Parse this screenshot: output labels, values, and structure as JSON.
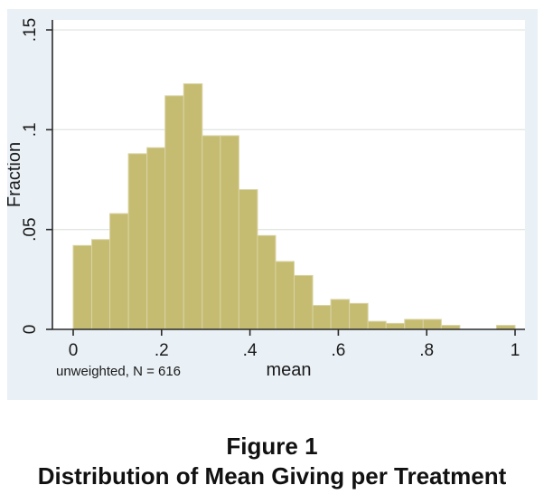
{
  "figure": {
    "background": "#e9f0f6",
    "plot_background": "#ffffff",
    "grid_color": "#e3e7e2",
    "axis_color": "#2a2a2a",
    "text_color": "#1a1a1a",
    "bar_fill": "#c5bc72",
    "bar_border": "#d9d3a4",
    "note": "unweighted, N = 616"
  },
  "caption": {
    "line1": "Figure 1",
    "line2": "Distribution of Mean Giving per Treatment"
  },
  "chart_data": {
    "type": "bar",
    "chart_kind": "histogram",
    "title": "",
    "xlabel": "mean",
    "ylabel": "Fraction",
    "note": "unweighted, N = 616",
    "n": 616,
    "grid": true,
    "legend": false,
    "xlim": [
      0,
      1
    ],
    "ylim": [
      0,
      0.155
    ],
    "x_ticks": [
      {
        "v": 0,
        "label": "0"
      },
      {
        "v": 0.2,
        "label": ".2"
      },
      {
        "v": 0.4,
        "label": ".4"
      },
      {
        "v": 0.6,
        "label": ".6"
      },
      {
        "v": 0.8,
        "label": ".8"
      },
      {
        "v": 1,
        "label": "1"
      }
    ],
    "y_ticks": [
      {
        "v": 0,
        "label": "0"
      },
      {
        "v": 0.05,
        "label": ".05"
      },
      {
        "v": 0.1,
        "label": ".1"
      },
      {
        "v": 0.15,
        "label": ".15"
      }
    ],
    "bin_start": 0,
    "bin_width": 0.04167,
    "bins": [
      {
        "x0": 0.0,
        "x1": 0.042,
        "fraction": 0.042
      },
      {
        "x0": 0.042,
        "x1": 0.083,
        "fraction": 0.045
      },
      {
        "x0": 0.083,
        "x1": 0.125,
        "fraction": 0.058
      },
      {
        "x0": 0.125,
        "x1": 0.167,
        "fraction": 0.088
      },
      {
        "x0": 0.167,
        "x1": 0.208,
        "fraction": 0.091
      },
      {
        "x0": 0.208,
        "x1": 0.25,
        "fraction": 0.117
      },
      {
        "x0": 0.25,
        "x1": 0.292,
        "fraction": 0.123
      },
      {
        "x0": 0.292,
        "x1": 0.333,
        "fraction": 0.097
      },
      {
        "x0": 0.333,
        "x1": 0.375,
        "fraction": 0.097
      },
      {
        "x0": 0.375,
        "x1": 0.417,
        "fraction": 0.07
      },
      {
        "x0": 0.417,
        "x1": 0.458,
        "fraction": 0.047
      },
      {
        "x0": 0.458,
        "x1": 0.5,
        "fraction": 0.034
      },
      {
        "x0": 0.5,
        "x1": 0.542,
        "fraction": 0.027
      },
      {
        "x0": 0.542,
        "x1": 0.583,
        "fraction": 0.012
      },
      {
        "x0": 0.583,
        "x1": 0.625,
        "fraction": 0.015
      },
      {
        "x0": 0.625,
        "x1": 0.667,
        "fraction": 0.013
      },
      {
        "x0": 0.667,
        "x1": 0.708,
        "fraction": 0.004
      },
      {
        "x0": 0.708,
        "x1": 0.75,
        "fraction": 0.003
      },
      {
        "x0": 0.75,
        "x1": 0.792,
        "fraction": 0.005
      },
      {
        "x0": 0.792,
        "x1": 0.833,
        "fraction": 0.005
      },
      {
        "x0": 0.833,
        "x1": 0.875,
        "fraction": 0.002
      },
      {
        "x0": 0.875,
        "x1": 0.917,
        "fraction": 0
      },
      {
        "x0": 0.917,
        "x1": 0.958,
        "fraction": 0
      },
      {
        "x0": 0.958,
        "x1": 1.0,
        "fraction": 0.002
      }
    ]
  }
}
